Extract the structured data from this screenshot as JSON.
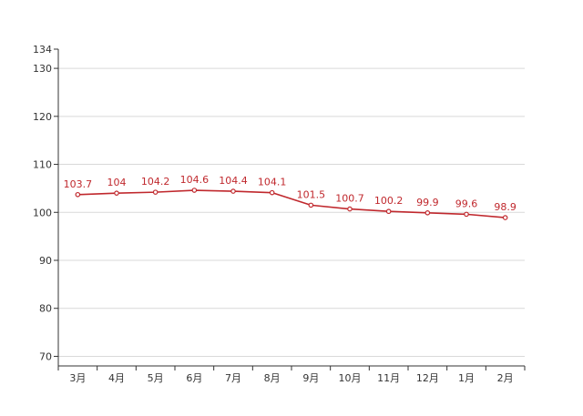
{
  "chart_data": {
    "type": "line",
    "categories": [
      "3月",
      "4月",
      "5月",
      "6月",
      "7月",
      "8月",
      "9月",
      "10月",
      "11月",
      "12月",
      "1月",
      "2月"
    ],
    "series": [
      {
        "values": [
          103.7,
          104,
          104.2,
          104.6,
          104.4,
          104.1,
          101.5,
          100.7,
          100.2,
          99.9,
          99.6,
          98.9
        ],
        "color": "#c0282d",
        "data_labels": [
          "103.7",
          "104",
          "104.2",
          "104.6",
          "104.4",
          "104.1",
          "101.5",
          "100.7",
          "100.2",
          "99.9",
          "99.6",
          "98.9"
        ]
      }
    ],
    "ylim": [
      68,
      134
    ],
    "yticks": [
      70,
      80,
      90,
      100,
      110,
      120,
      130,
      134
    ],
    "ytick_labels": [
      "70",
      "80",
      "90",
      "100",
      "110",
      "120",
      "130",
      "134"
    ],
    "grid": true,
    "grid_color": "#d9d9d9",
    "axis_color": "#333333"
  }
}
